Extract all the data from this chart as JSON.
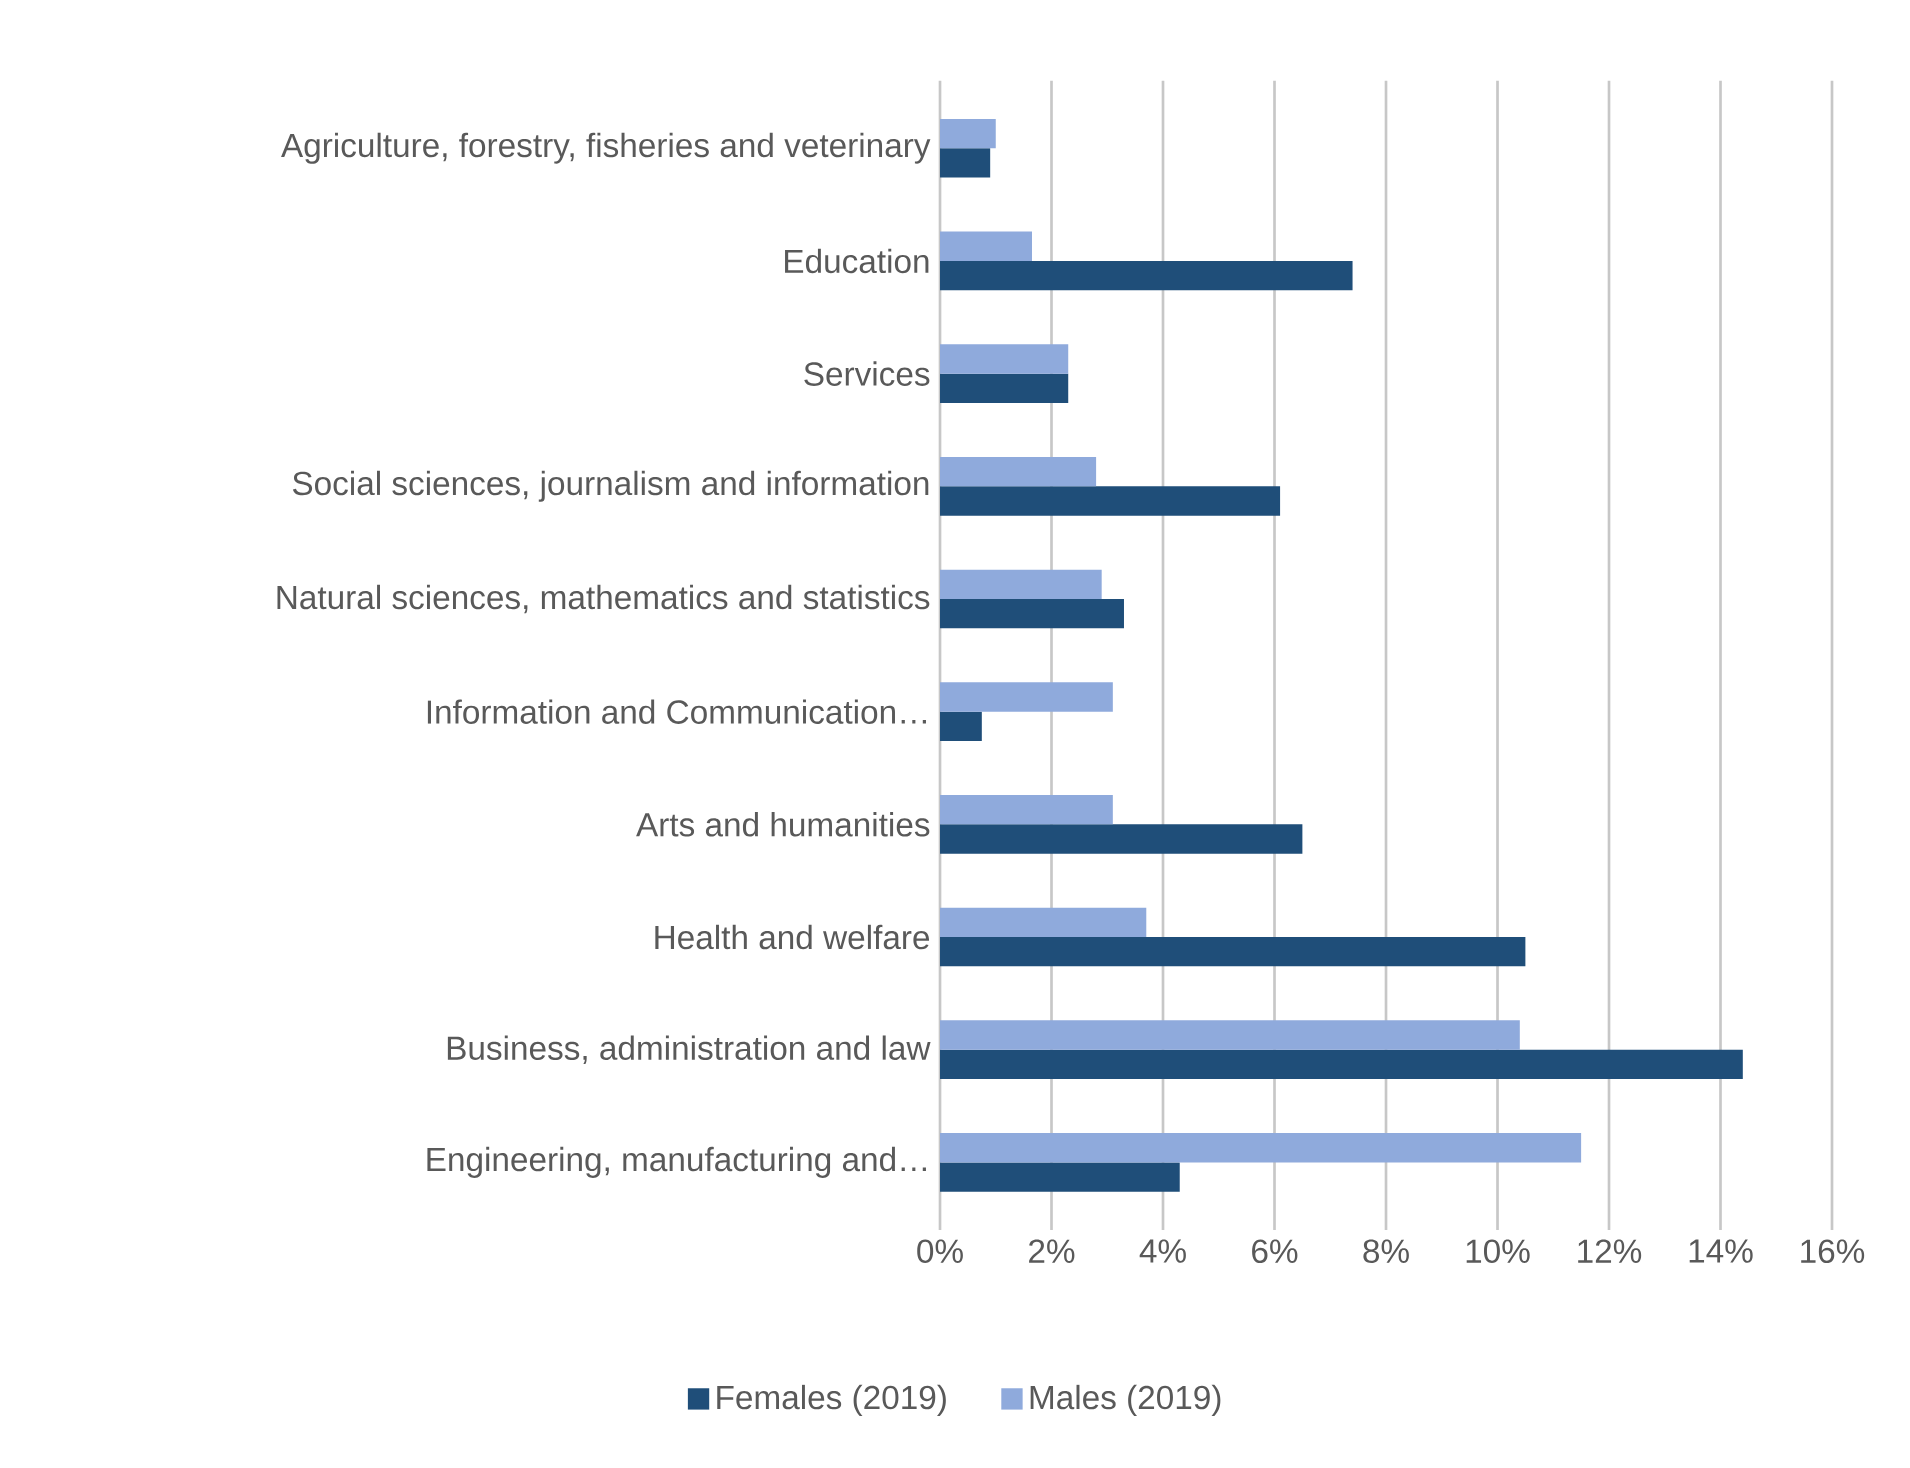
{
  "chart_data": {
    "type": "bar",
    "orientation": "horizontal",
    "categories": [
      "Agriculture, forestry, fisheries and veterinary",
      "Education",
      "Services",
      "Social sciences, journalism and information",
      "Natural sciences, mathematics and statistics",
      "Information and Communication…",
      "Arts and humanities",
      "Health and welfare",
      "Business, administration and law",
      "Engineering, manufacturing and…"
    ],
    "series": [
      {
        "name": "Females (2019)",
        "color": "#1f4e79",
        "values": [
          0.9,
          7.4,
          2.3,
          6.1,
          3.3,
          0.75,
          6.5,
          10.5,
          14.4,
          4.3
        ]
      },
      {
        "name": "Males (2019)",
        "color": "#8faadc",
        "values": [
          1.0,
          1.65,
          2.3,
          2.8,
          2.9,
          3.1,
          3.1,
          3.7,
          10.4,
          11.5
        ]
      }
    ],
    "xlim": [
      0,
      16
    ],
    "xticks": [
      {
        "value": 0,
        "label": "0%"
      },
      {
        "value": 2,
        "label": "2%"
      },
      {
        "value": 4,
        "label": "4%"
      },
      {
        "value": 6,
        "label": "6%"
      },
      {
        "value": 8,
        "label": "8%"
      },
      {
        "value": 10,
        "label": "10%"
      },
      {
        "value": 12,
        "label": "12%"
      },
      {
        "value": 14,
        "label": "14%"
      },
      {
        "value": 16,
        "label": "16%"
      }
    ],
    "grid": "x",
    "legend": "bottom"
  }
}
